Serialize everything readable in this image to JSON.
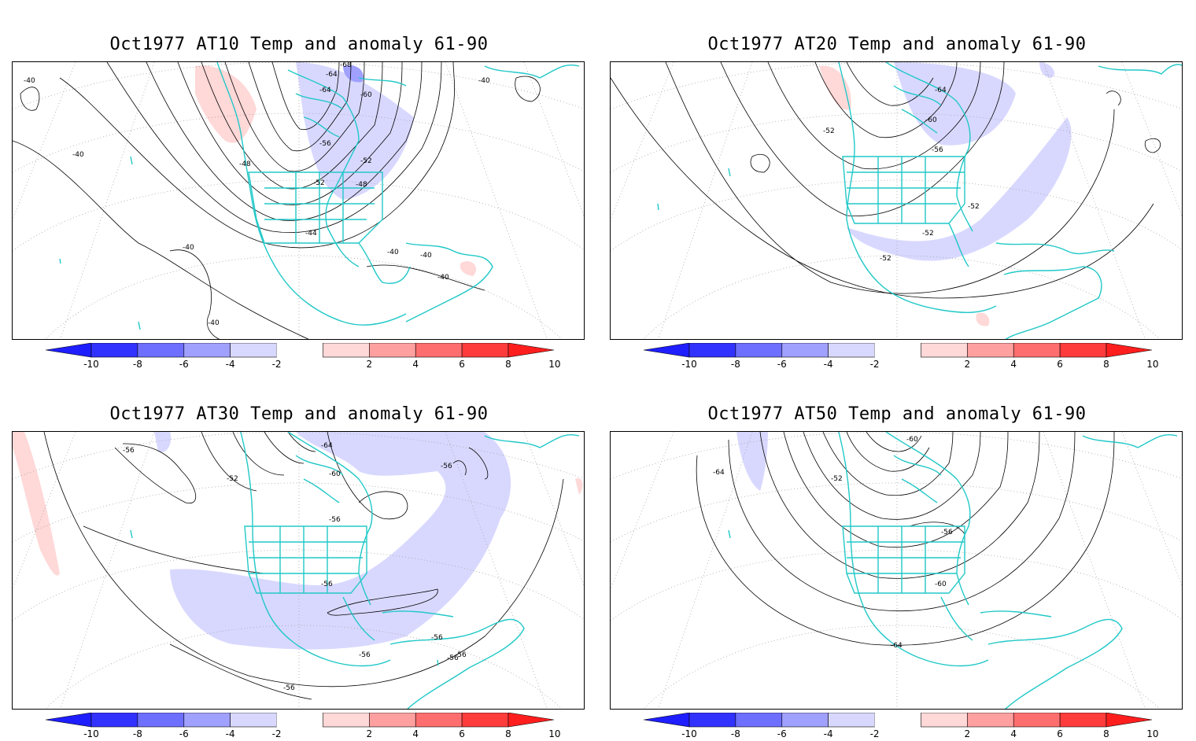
{
  "panels": [
    {
      "title": "Oct1977 AT10 Temp and anomaly 61-90",
      "contour_labels": [
        "-40",
        "-40",
        "-40",
        "-40",
        "-40",
        "-40",
        "-40",
        "-40",
        "-44",
        "-48",
        "-48",
        "-52",
        "-52",
        "-56",
        "-60",
        "-64",
        "-64",
        "-68"
      ]
    },
    {
      "title": "Oct1977 AT20 Temp and anomaly 61-90",
      "contour_labels": [
        "-64",
        "-60",
        "-56",
        "-52",
        "-52",
        "-52",
        "-52"
      ]
    },
    {
      "title": "Oct1977 AT30 Temp and anomaly 61-90",
      "contour_labels": [
        "-56",
        "-52",
        "-64",
        "-60",
        "-56",
        "-56",
        "-56",
        "-56",
        "-56",
        "-56",
        "-56",
        "-56"
      ]
    },
    {
      "title": "Oct1977 AT50 Temp and anomaly 61-90",
      "contour_labels": [
        "-64",
        "-60",
        "-52",
        "-56",
        "-60",
        "-64"
      ]
    }
  ],
  "colorbar": {
    "ticks": [
      "-10",
      "-8",
      "-6",
      "-4",
      "-2",
      "2",
      "4",
      "6",
      "8",
      "10"
    ],
    "colors": [
      "#1e1eff",
      "#3232ff",
      "#6e6eff",
      "#a0a0ff",
      "#d8d8ff",
      "#ffffff",
      "#ffd8d8",
      "#ffa0a0",
      "#ff6e6e",
      "#ff3c3c",
      "#ff1e1e"
    ]
  },
  "map_colors": {
    "coastline": "#22c8c8",
    "contour": "#000000",
    "grid": "#999999",
    "neg_anomaly": "#d8d8ff",
    "neg_anomaly_strong": "#a0a0ff",
    "pos_anomaly": "#ffd8d8"
  }
}
